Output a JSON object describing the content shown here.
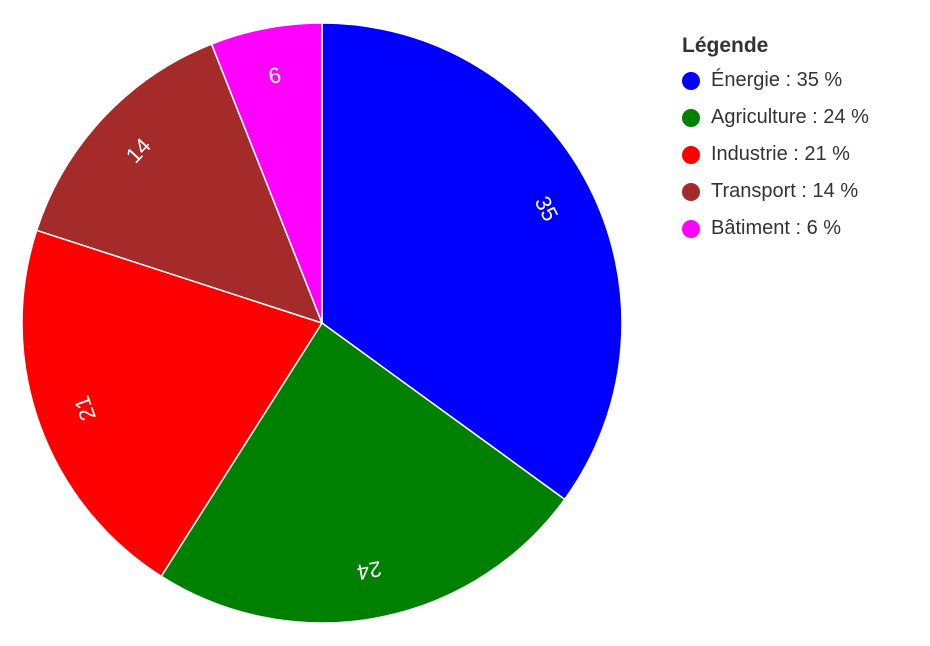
{
  "chart_data": {
    "type": "pie",
    "title": "",
    "legend": {
      "title": "Légende",
      "position": "right"
    },
    "slices": [
      {
        "label": "Énergie",
        "value": 35,
        "color": "#0000ff",
        "legend_text": "Énergie : 35 %",
        "data_label": "35"
      },
      {
        "label": "Agriculture",
        "value": 24,
        "color": "#008000",
        "legend_text": "Agriculture : 24 %",
        "data_label": "24"
      },
      {
        "label": "Industrie",
        "value": 21,
        "color": "#ff0000",
        "legend_text": "Industrie : 21 %",
        "data_label": "21"
      },
      {
        "label": "Transport",
        "value": 14,
        "color": "#a52a2a",
        "legend_text": "Transport : 14 %",
        "data_label": "14"
      },
      {
        "label": "Bâtiment",
        "value": 6,
        "color": "#ff00ff",
        "legend_text": "Bâtiment : 6 %",
        "data_label": "6"
      }
    ],
    "start_angle": "top",
    "direction": "clockwise",
    "label_color": "#ffffff"
  }
}
